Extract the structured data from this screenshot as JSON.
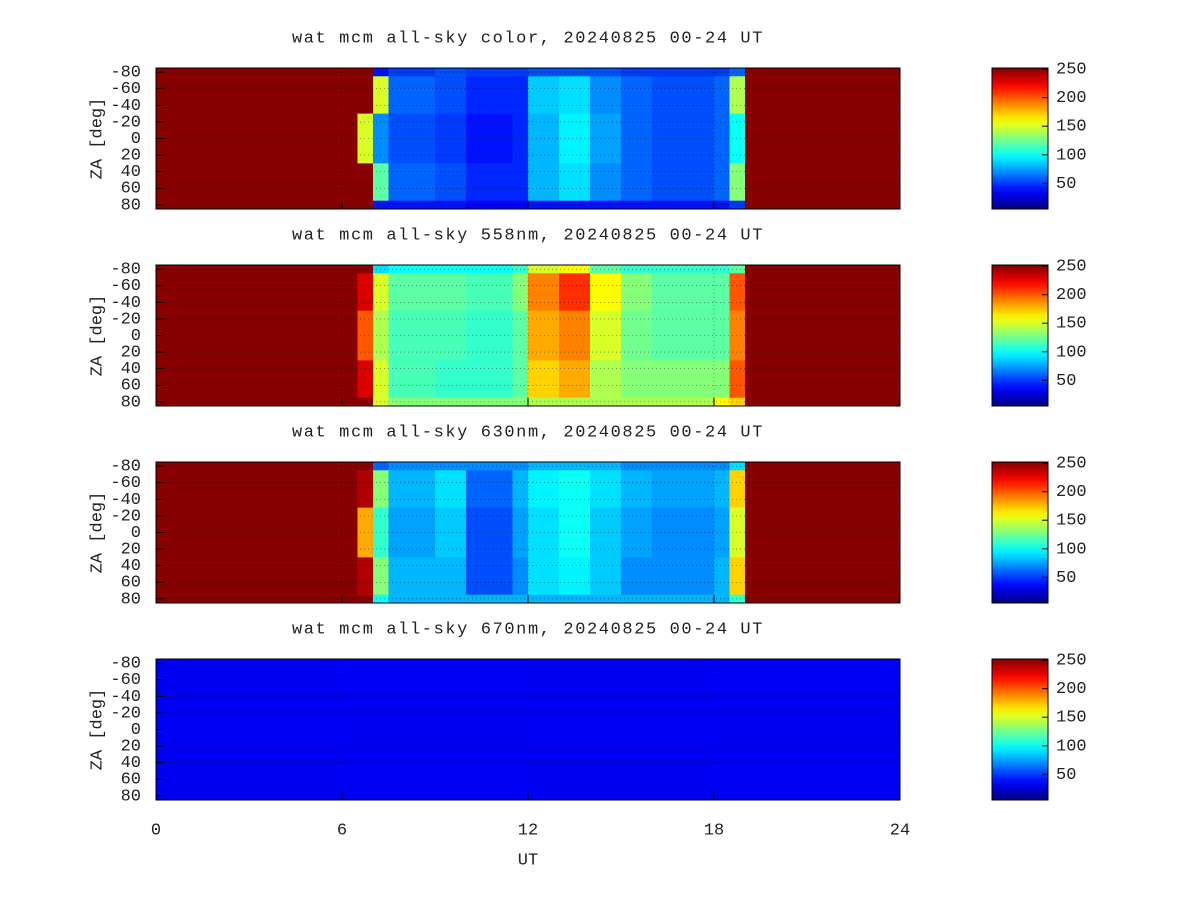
{
  "chart_data": [
    {
      "type": "heatmap",
      "title": "wat mcm all-sky color, 20240825 00-24 UT",
      "ylabel": "ZA [deg]",
      "colormap": "jet",
      "xlim": [
        0,
        24
      ],
      "xticks": [
        0,
        6,
        12,
        18,
        24
      ],
      "ylim": [
        -85,
        85
      ],
      "yticks": [
        -80,
        -60,
        -40,
        -20,
        0,
        20,
        40,
        60,
        80
      ],
      "grid": true,
      "clim": [
        5,
        252
      ],
      "cticks": [
        50,
        100,
        150,
        200,
        250
      ],
      "xbins": [
        0,
        6.5,
        7,
        7.5,
        9,
        10,
        11.5,
        12,
        13,
        14,
        15,
        16,
        18,
        18.5,
        19,
        19.5,
        24
      ],
      "ybins": [
        -85,
        -75,
        -30,
        30,
        75,
        85
      ],
      "z": [
        [
          250,
          250,
          40,
          50,
          55,
          50,
          50,
          55,
          55,
          55,
          50,
          50,
          50,
          60,
          250,
          250
        ],
        [
          250,
          250,
          150,
          60,
          55,
          45,
          45,
          85,
          90,
          70,
          60,
          55,
          60,
          140,
          250,
          250
        ],
        [
          250,
          150,
          70,
          55,
          50,
          40,
          45,
          80,
          95,
          75,
          60,
          55,
          60,
          100,
          250,
          250
        ],
        [
          250,
          250,
          120,
          60,
          55,
          45,
          45,
          80,
          90,
          70,
          60,
          55,
          60,
          130,
          250,
          250
        ],
        [
          250,
          250,
          40,
          40,
          40,
          35,
          35,
          40,
          40,
          40,
          40,
          40,
          40,
          50,
          250,
          250
        ]
      ]
    },
    {
      "type": "heatmap",
      "title": "wat mcm all-sky 558nm, 20240825 00-24 UT",
      "ylabel": "ZA [deg]",
      "colormap": "jet",
      "xlim": [
        0,
        24
      ],
      "xticks": [
        0,
        6,
        12,
        18,
        24
      ],
      "ylim": [
        -85,
        85
      ],
      "yticks": [
        -80,
        -60,
        -40,
        -20,
        0,
        20,
        40,
        60,
        80
      ],
      "grid": true,
      "clim": [
        5,
        252
      ],
      "cticks": [
        50,
        100,
        150,
        200,
        250
      ],
      "xbins": [
        0,
        6.5,
        7,
        7.5,
        9,
        10,
        11.5,
        12,
        13,
        14,
        15,
        16,
        18,
        18.5,
        19,
        19.5,
        24
      ],
      "ybins": [
        -85,
        -75,
        -30,
        30,
        75,
        85
      ],
      "z": [
        [
          250,
          250,
          90,
          100,
          100,
          100,
          110,
          150,
          160,
          120,
          110,
          110,
          110,
          120,
          250,
          250
        ],
        [
          250,
          230,
          150,
          120,
          120,
          115,
          130,
          190,
          210,
          160,
          130,
          120,
          120,
          200,
          250,
          250
        ],
        [
          250,
          200,
          140,
          115,
          115,
          110,
          120,
          180,
          190,
          150,
          125,
          120,
          120,
          190,
          250,
          250
        ],
        [
          250,
          230,
          150,
          115,
          110,
          110,
          120,
          170,
          180,
          140,
          130,
          130,
          130,
          200,
          250,
          250
        ],
        [
          250,
          250,
          150,
          130,
          130,
          130,
          130,
          140,
          140,
          140,
          140,
          140,
          160,
          170,
          250,
          250
        ]
      ]
    },
    {
      "type": "heatmap",
      "title": "wat mcm all-sky 630nm, 20240825 00-24 UT",
      "ylabel": "ZA [deg]",
      "colormap": "jet",
      "xlim": [
        0,
        24
      ],
      "xticks": [
        0,
        6,
        12,
        18,
        24
      ],
      "ylim": [
        -85,
        85
      ],
      "yticks": [
        -80,
        -60,
        -40,
        -20,
        0,
        20,
        40,
        60,
        80
      ],
      "grid": true,
      "clim": [
        5,
        252
      ],
      "cticks": [
        50,
        100,
        150,
        200,
        250
      ],
      "xbins": [
        0,
        6.5,
        7,
        7.5,
        9,
        10,
        11.5,
        12,
        13,
        14,
        15,
        16,
        18,
        18.5,
        19,
        19.5,
        24
      ],
      "ybins": [
        -85,
        -75,
        -30,
        30,
        75,
        85
      ],
      "z": [
        [
          250,
          250,
          60,
          70,
          70,
          70,
          70,
          80,
          80,
          80,
          70,
          70,
          70,
          90,
          250,
          250
        ],
        [
          250,
          240,
          130,
          80,
          90,
          60,
          80,
          95,
          100,
          90,
          80,
          75,
          80,
          170,
          250,
          250
        ],
        [
          250,
          180,
          110,
          75,
          85,
          55,
          75,
          90,
          100,
          85,
          75,
          70,
          75,
          150,
          250,
          250
        ],
        [
          250,
          240,
          130,
          80,
          80,
          55,
          70,
          90,
          95,
          85,
          70,
          70,
          80,
          170,
          250,
          250
        ],
        [
          250,
          250,
          100,
          80,
          80,
          80,
          80,
          80,
          80,
          80,
          80,
          80,
          80,
          110,
          250,
          250
        ]
      ]
    },
    {
      "type": "heatmap",
      "title": "wat mcm all-sky 670nm, 20240825 00-24 UT",
      "ylabel": "ZA [deg]",
      "xlabel": "UT",
      "colormap": "jet",
      "xlim": [
        0,
        24
      ],
      "xticks": [
        0,
        6,
        12,
        18,
        24
      ],
      "ylim": [
        -85,
        85
      ],
      "yticks": [
        -80,
        -60,
        -40,
        -20,
        0,
        20,
        40,
        60,
        80
      ],
      "grid": true,
      "clim": [
        5,
        252
      ],
      "cticks": [
        50,
        100,
        150,
        200,
        250
      ],
      "xbins": [
        0,
        6,
        12,
        18,
        24
      ],
      "ybins": [
        -85,
        -30,
        30,
        85
      ],
      "z": [
        [
          33,
          34,
          33,
          34
        ],
        [
          34,
          33,
          34,
          33
        ],
        [
          33,
          34,
          33,
          34
        ]
      ]
    }
  ]
}
